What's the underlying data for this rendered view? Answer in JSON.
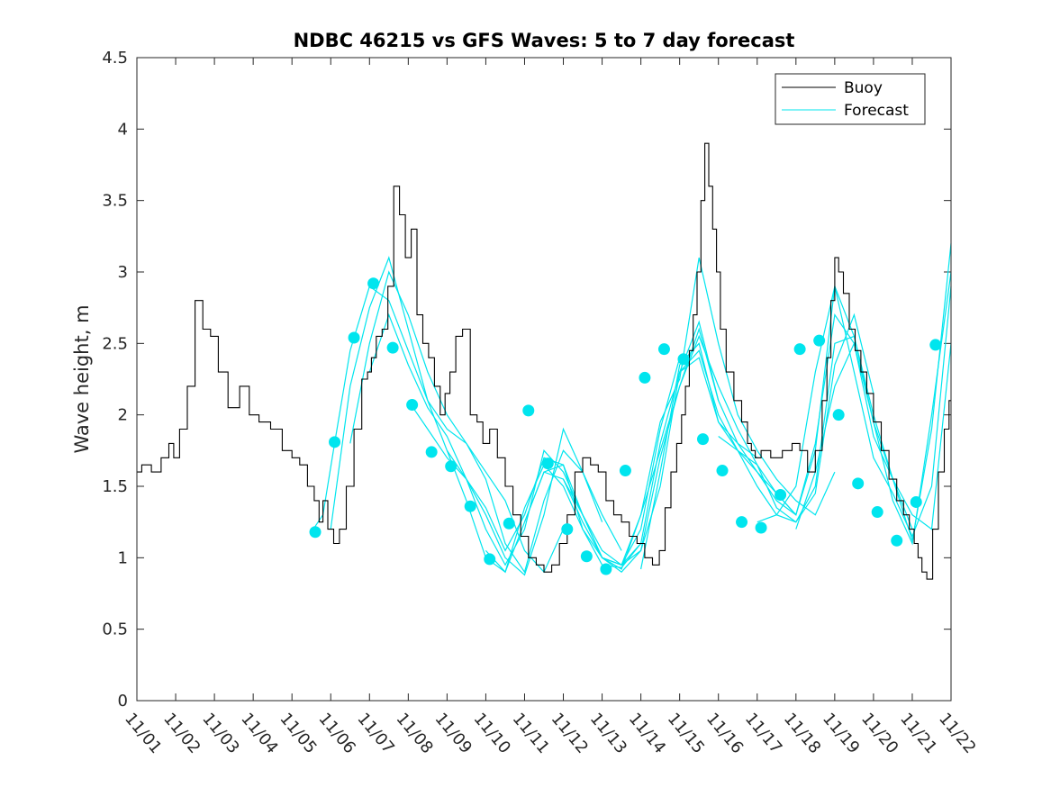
{
  "chart_data": {
    "type": "line",
    "title": "NDBC 46215 vs GFS Waves: 5 to 7 day forecast",
    "xlabel": "",
    "ylabel": "Wave height, m",
    "xlim": [
      0,
      21
    ],
    "ylim": [
      0,
      4.5
    ],
    "x_tick_labels": [
      "11/01",
      "11/02",
      "11/03",
      "11/04",
      "11/05",
      "11/06",
      "11/07",
      "11/08",
      "11/09",
      "11/10",
      "11/11",
      "11/12",
      "11/13",
      "11/14",
      "11/15",
      "11/16",
      "11/17",
      "11/18",
      "11/19",
      "11/20",
      "11/21",
      "11/22"
    ],
    "y_ticks": [
      0,
      0.5,
      1,
      1.5,
      2,
      2.5,
      3,
      3.5,
      4,
      4.5
    ],
    "y_tick_labels": [
      "0",
      "0.5",
      "1",
      "1.5",
      "2",
      "2.5",
      "3",
      "3.5",
      "4",
      "4.5"
    ],
    "legend": {
      "position": "top-right",
      "entries": [
        "Buoy",
        "Forecast"
      ]
    },
    "colors": {
      "buoy": "#000000",
      "forecast": "#00e5ee",
      "marker": "#00e5ee"
    },
    "buoy_series": {
      "name": "Buoy",
      "x": [
        0,
        0.25,
        0.5,
        0.75,
        0.9,
        1.0,
        1.2,
        1.4,
        1.6,
        1.8,
        2.0,
        2.2,
        2.5,
        2.8,
        3.0,
        3.3,
        3.6,
        3.9,
        4.1,
        4.3,
        4.5,
        4.65,
        4.75,
        4.85,
        5.0,
        5.15,
        5.3,
        5.5,
        5.7,
        5.9,
        6.0,
        6.1,
        6.25,
        6.4,
        6.55,
        6.7,
        6.85,
        7.0,
        7.15,
        7.3,
        7.45,
        7.6,
        7.75,
        7.9,
        8.0,
        8.15,
        8.3,
        8.5,
        8.7,
        8.85,
        9.0,
        9.2,
        9.4,
        9.6,
        9.8,
        10.0,
        10.2,
        10.4,
        10.6,
        10.8,
        11.0,
        11.2,
        11.4,
        11.6,
        11.8,
        12.0,
        12.2,
        12.4,
        12.6,
        12.8,
        13.0,
        13.2,
        13.4,
        13.55,
        13.7,
        13.85,
        14.0,
        14.1,
        14.2,
        14.3,
        14.4,
        14.5,
        14.6,
        14.7,
        14.8,
        14.9,
        15.0,
        15.1,
        15.3,
        15.5,
        15.7,
        15.8,
        15.9,
        16.0,
        16.2,
        16.5,
        16.8,
        17.0,
        17.2,
        17.4,
        17.6,
        17.75,
        17.85,
        17.95,
        18.05,
        18.15,
        18.3,
        18.45,
        18.6,
        18.75,
        18.9,
        19.1,
        19.3,
        19.5,
        19.7,
        19.85,
        20.0,
        20.1,
        20.2,
        20.3,
        20.45,
        20.6,
        20.75,
        20.9,
        21.0
      ],
      "y": [
        1.6,
        1.65,
        1.6,
        1.7,
        1.8,
        1.7,
        1.9,
        2.2,
        2.8,
        2.6,
        2.55,
        2.3,
        2.05,
        2.2,
        2.0,
        1.95,
        1.9,
        1.75,
        1.7,
        1.65,
        1.5,
        1.4,
        1.25,
        1.4,
        1.2,
        1.1,
        1.2,
        1.5,
        1.9,
        2.25,
        2.3,
        2.4,
        2.55,
        2.6,
        2.9,
        3.6,
        3.4,
        3.1,
        3.3,
        2.7,
        2.5,
        2.4,
        2.2,
        2.0,
        2.15,
        2.3,
        2.55,
        2.6,
        2.0,
        1.95,
        1.8,
        1.9,
        1.7,
        1.5,
        1.3,
        1.15,
        1.0,
        0.95,
        0.9,
        0.95,
        1.1,
        1.3,
        1.6,
        1.7,
        1.65,
        1.6,
        1.4,
        1.3,
        1.25,
        1.15,
        1.1,
        1.0,
        0.95,
        1.05,
        1.35,
        1.6,
        1.8,
        2.0,
        2.2,
        2.45,
        2.7,
        3.0,
        3.5,
        3.9,
        3.6,
        3.3,
        3.0,
        2.6,
        2.3,
        2.1,
        1.95,
        1.8,
        1.75,
        1.7,
        1.75,
        1.7,
        1.75,
        1.8,
        1.75,
        1.6,
        1.75,
        2.1,
        2.4,
        2.8,
        3.1,
        3.0,
        2.85,
        2.6,
        2.45,
        2.3,
        2.15,
        1.95,
        1.75,
        1.55,
        1.4,
        1.3,
        1.2,
        1.1,
        1.0,
        0.9,
        0.85,
        1.2,
        1.6,
        1.9,
        2.1
      ]
    },
    "forecast_series": [
      {
        "name": "Forecast 1",
        "x": [
          4.5,
          4.8,
          5.1,
          5.5,
          6.0,
          6.5,
          7.0,
          7.5,
          8.0,
          8.5,
          9.0,
          9.5,
          10.0,
          10.5,
          11.0
        ],
        "y": [
          1.18,
          1.3,
          1.8,
          2.45,
          2.9,
          2.8,
          2.45,
          2.1,
          1.9,
          1.8,
          1.6,
          1.4,
          1.05,
          0.9,
          1.2
        ]
      },
      {
        "name": "Forecast 2",
        "x": [
          5.0,
          5.5,
          6.0,
          6.5,
          7.0,
          7.5,
          8.0,
          8.5,
          9.0,
          9.5,
          10.0,
          10.5,
          11.0,
          11.5,
          12.0
        ],
        "y": [
          1.2,
          2.2,
          2.75,
          3.1,
          2.6,
          2.1,
          1.75,
          1.55,
          1.3,
          1.0,
          0.88,
          1.3,
          1.9,
          1.6,
          1.25
        ]
      },
      {
        "name": "Forecast 3",
        "x": [
          5.5,
          6.0,
          6.5,
          7.0,
          7.5,
          8.0,
          8.5,
          9.0,
          9.5,
          10.0,
          10.5,
          11.0,
          11.5,
          12.0,
          12.5
        ],
        "y": [
          1.8,
          2.5,
          3.0,
          2.7,
          2.3,
          2.0,
          1.8,
          1.55,
          1.1,
          0.9,
          1.4,
          1.75,
          1.6,
          1.3,
          1.05
        ]
      },
      {
        "name": "Forecast 4",
        "x": [
          6.0,
          6.5,
          7.0,
          7.5,
          8.0,
          8.5,
          9.0,
          9.5,
          10.0,
          10.5,
          11.0,
          11.5,
          12.0,
          12.5,
          13.0
        ],
        "y": [
          2.3,
          2.7,
          2.35,
          2.05,
          1.85,
          1.55,
          1.2,
          0.95,
          1.2,
          1.75,
          1.6,
          1.3,
          1.05,
          0.95,
          1.1
        ]
      },
      {
        "name": "Forecast 5",
        "x": [
          7.0,
          7.5,
          8.0,
          8.5,
          9.0,
          9.5,
          10.0,
          10.5,
          11.0,
          11.5,
          12.0,
          12.5,
          13.0,
          13.5,
          14.0
        ],
        "y": [
          2.1,
          1.9,
          1.7,
          1.55,
          1.35,
          1.05,
          1.3,
          1.7,
          1.65,
          1.3,
          1.0,
          0.95,
          1.2,
          1.9,
          2.4
        ]
      },
      {
        "name": "Forecast 6",
        "x": [
          8.0,
          8.5,
          9.0,
          9.5,
          10.0,
          10.5,
          11.0,
          11.5,
          12.0,
          12.5,
          13.0,
          13.5,
          14.0,
          14.5,
          15.0
        ],
        "y": [
          1.75,
          1.4,
          1.0,
          0.9,
          1.25,
          1.6,
          1.55,
          1.25,
          1.0,
          0.9,
          1.05,
          1.5,
          2.3,
          2.65,
          2.1
        ]
      },
      {
        "name": "Forecast 7",
        "x": [
          9.0,
          9.5,
          10.0,
          10.5,
          11.0,
          11.5,
          12.0,
          12.5,
          13.0,
          13.5,
          14.0,
          14.5,
          15.0,
          15.5,
          16.0
        ],
        "y": [
          1.05,
          0.9,
          1.35,
          1.65,
          1.5,
          1.2,
          1.0,
          0.95,
          1.3,
          1.75,
          2.2,
          2.6,
          2.1,
          1.8,
          1.7
        ]
      },
      {
        "name": "Forecast 8",
        "x": [
          10.0,
          10.5,
          11.0,
          11.5,
          12.0,
          12.5,
          13.0,
          13.5,
          14.0,
          14.5,
          15.0,
          15.5,
          16.0,
          16.5,
          17.0
        ],
        "y": [
          1.25,
          1.6,
          1.65,
          1.2,
          0.95,
          0.93,
          1.1,
          1.8,
          2.3,
          2.45,
          2.0,
          1.75,
          1.6,
          1.45,
          1.3
        ]
      },
      {
        "name": "Forecast 9",
        "x": [
          11.0,
          11.5,
          12.0,
          12.5,
          13.0,
          13.5,
          14.0,
          14.5,
          15.0,
          15.5,
          16.0,
          16.5,
          17.0,
          17.5,
          18.0
        ],
        "y": [
          1.55,
          1.3,
          1.0,
          0.92,
          1.3,
          1.95,
          2.25,
          3.1,
          2.5,
          2.0,
          1.75,
          1.55,
          1.4,
          1.3,
          1.6
        ]
      },
      {
        "name": "Forecast 10",
        "x": [
          12.0,
          12.5,
          13.0,
          13.5,
          14.0,
          14.5,
          15.0,
          15.5,
          16.0,
          16.5,
          17.0,
          17.5,
          18.0,
          18.5,
          19.0
        ],
        "y": [
          1.0,
          0.95,
          1.05,
          1.7,
          2.2,
          2.55,
          2.2,
          1.9,
          1.65,
          1.35,
          1.25,
          1.45,
          2.35,
          2.7,
          2.15
        ]
      },
      {
        "name": "Forecast 11",
        "x": [
          13.0,
          13.5,
          14.0,
          14.5,
          15.0,
          15.5,
          16.0,
          16.5,
          17.0,
          17.5,
          18.0,
          18.5,
          19.0,
          19.5,
          20.0
        ],
        "y": [
          0.92,
          1.6,
          2.35,
          2.5,
          1.95,
          1.75,
          1.5,
          1.3,
          1.25,
          1.5,
          2.5,
          2.55,
          2.0,
          1.55,
          1.2
        ]
      },
      {
        "name": "Forecast 12",
        "x": [
          14.0,
          14.5,
          15.0,
          15.5,
          16.0,
          16.5,
          17.0,
          17.5,
          18.0,
          18.5,
          19.0,
          19.5,
          20.0,
          20.5,
          21.0
        ],
        "y": [
          2.3,
          2.4,
          1.95,
          1.8,
          1.6,
          1.4,
          1.3,
          1.8,
          2.7,
          2.5,
          1.85,
          1.55,
          1.3,
          1.2,
          2.5
        ]
      },
      {
        "name": "Forecast 13",
        "x": [
          15.0,
          15.5,
          16.0,
          16.5,
          17.0,
          17.5,
          18.0,
          18.5,
          19.0,
          19.5,
          20.0,
          20.5,
          21.0
        ],
        "y": [
          1.85,
          1.75,
          1.65,
          1.45,
          1.3,
          1.75,
          2.9,
          2.3,
          1.7,
          1.45,
          1.15,
          1.5,
          2.9
        ]
      },
      {
        "name": "Forecast 14",
        "x": [
          16.0,
          16.5,
          17.0,
          17.5,
          18.0,
          18.5,
          19.0,
          19.5,
          20.0,
          20.5,
          21.0
        ],
        "y": [
          1.25,
          1.3,
          1.5,
          2.3,
          2.9,
          2.55,
          1.95,
          1.55,
          1.12,
          1.9,
          3.2
        ]
      },
      {
        "name": "Forecast 15",
        "x": [
          17.0,
          17.5,
          18.0,
          18.5,
          19.0,
          19.5,
          20.0,
          20.5,
          21.0
        ],
        "y": [
          1.2,
          1.6,
          2.2,
          2.5,
          1.95,
          1.4,
          1.1,
          2.0,
          3.0
        ]
      }
    ],
    "markers": {
      "x": [
        4.6,
        5.1,
        5.6,
        6.1,
        6.6,
        7.1,
        7.6,
        8.1,
        8.6,
        9.1,
        9.6,
        10.1,
        10.6,
        11.1,
        11.6,
        12.1,
        12.6,
        13.1,
        13.6,
        14.1,
        14.6,
        15.1,
        15.6,
        16.1,
        16.6,
        17.1,
        17.6,
        18.1,
        18.6,
        19.1,
        19.6,
        20.1,
        20.6
      ],
      "y": [
        1.18,
        1.81,
        2.54,
        2.92,
        2.47,
        2.07,
        1.74,
        1.64,
        1.36,
        0.99,
        1.24,
        2.03,
        1.66,
        1.2,
        1.01,
        0.92,
        1.61,
        2.26,
        2.46,
        2.39,
        1.83,
        1.61,
        1.25,
        1.21,
        1.44,
        2.46,
        2.52,
        2.0,
        1.52,
        1.32,
        1.12,
        1.39,
        2.49
      ]
    }
  }
}
